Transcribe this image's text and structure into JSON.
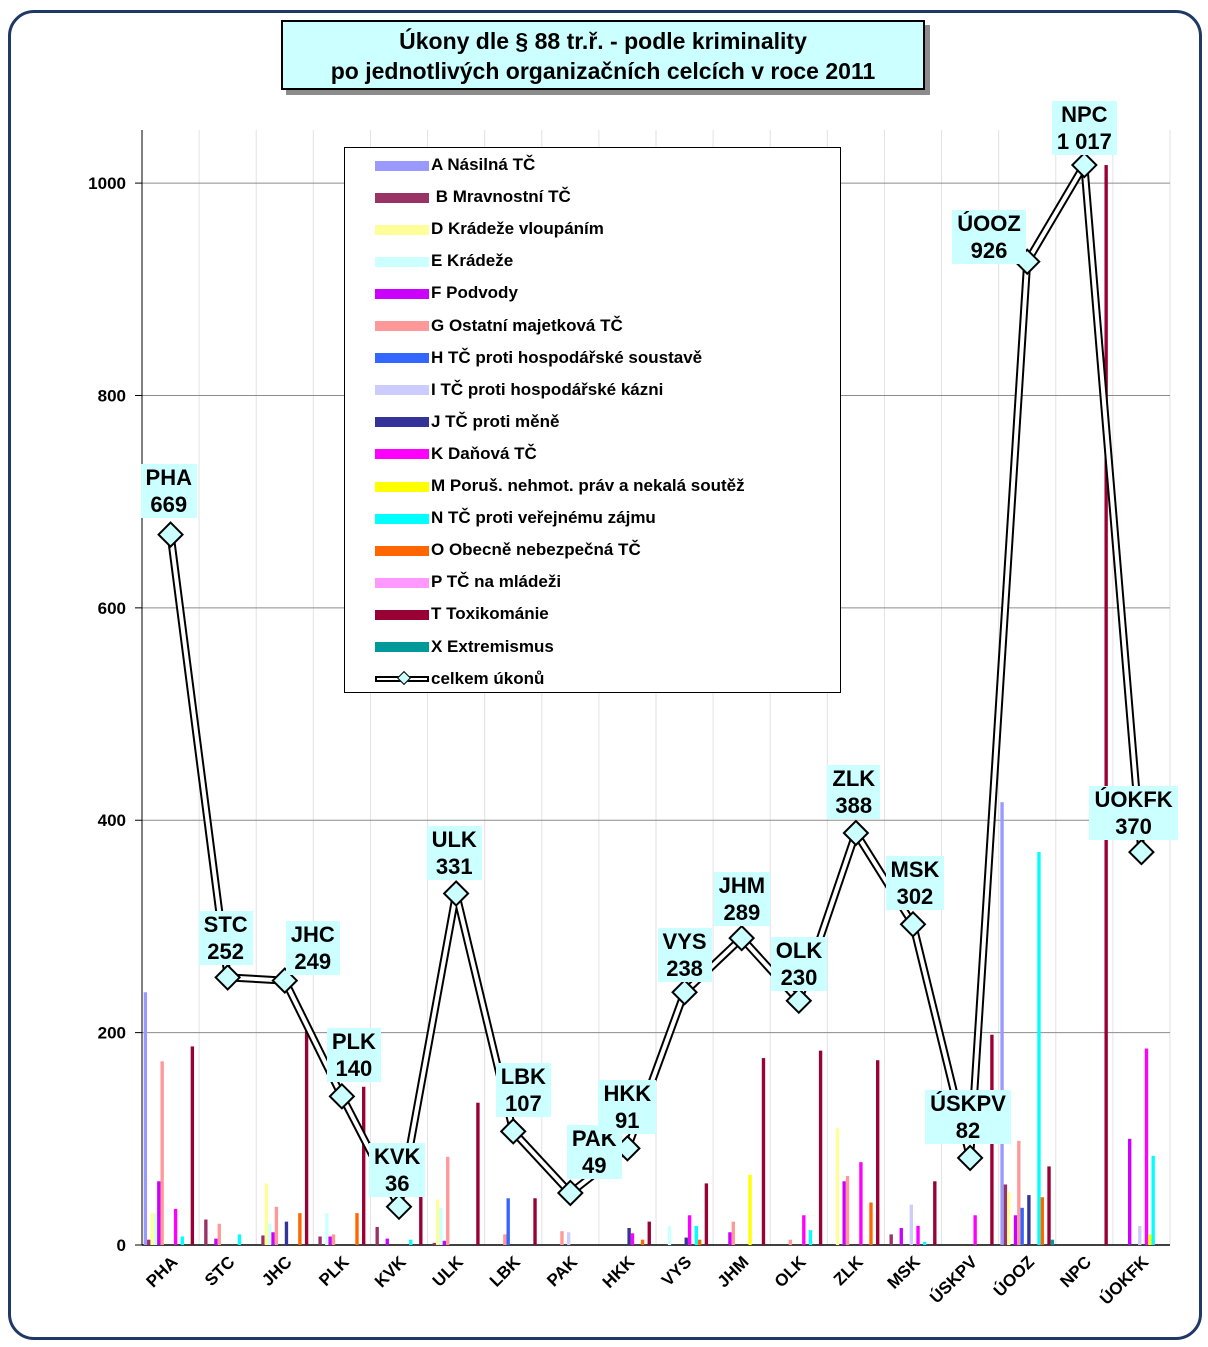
{
  "title": {
    "line1": "Úkony dle § 88 tr.ř. - podle kriminality",
    "line2": "po jednotlivých organizačních celcích v roce 2011"
  },
  "chart_data": {
    "type": "bar",
    "categories": [
      "PHA",
      "STC",
      "JHC",
      "PLK",
      "KVK",
      "ULK",
      "LBK",
      "PAK",
      "HKK",
      "VYS",
      "JHM",
      "OLK",
      "ZLK",
      "MSK",
      "ÚSKPV",
      "ÚOOZ",
      "NPC",
      "ÚOKFK"
    ],
    "ylim": [
      0,
      1050
    ],
    "yticks": [
      0,
      200,
      400,
      600,
      800,
      1000
    ],
    "grid": true,
    "legend_position": "top-center",
    "series": [
      {
        "name": "A Násilná TČ",
        "color": "#9999ff",
        "values": [
          238,
          0,
          0,
          0,
          0,
          0,
          0,
          0,
          0,
          0,
          0,
          0,
          0,
          0,
          0,
          417,
          0,
          0
        ]
      },
      {
        "name": " B Mravnostní TČ",
        "color": "#993366",
        "values": [
          5,
          24,
          9,
          8,
          17,
          2,
          0,
          0,
          0,
          0,
          0,
          0,
          0,
          10,
          0,
          57,
          0,
          0
        ]
      },
      {
        "name": "D Krádeže vloupáním",
        "color": "#ffff99",
        "values": [
          30,
          0,
          58,
          0,
          0,
          43,
          0,
          0,
          0,
          0,
          0,
          0,
          110,
          0,
          0,
          50,
          0,
          0
        ]
      },
      {
        "name": "E Krádeže",
        "color": "#ccffff",
        "values": [
          30,
          0,
          20,
          30,
          0,
          35,
          0,
          0,
          0,
          18,
          0,
          0,
          0,
          0,
          0,
          0,
          0,
          0
        ]
      },
      {
        "name": "F Podvody",
        "color": "#cc00ff",
        "values": [
          60,
          6,
          12,
          8,
          6,
          4,
          0,
          0,
          0,
          0,
          12,
          0,
          60,
          16,
          0,
          28,
          0,
          100
        ]
      },
      {
        "name": "G Ostatní majetková TČ",
        "color": "#ff9999",
        "values": [
          173,
          20,
          36,
          10,
          0,
          83,
          10,
          13,
          0,
          0,
          22,
          5,
          65,
          0,
          0,
          98,
          0,
          0
        ]
      },
      {
        "name": "H TČ proti hospodářské  soustavě",
        "color": "#3366ff",
        "values": [
          0,
          0,
          0,
          0,
          0,
          0,
          44,
          0,
          0,
          0,
          0,
          0,
          0,
          0,
          0,
          35,
          0,
          0
        ]
      },
      {
        "name": "I TČ proti hospodářské kázni",
        "color": "#ccccff",
        "values": [
          0,
          0,
          0,
          0,
          0,
          0,
          0,
          12,
          0,
          0,
          0,
          0,
          0,
          38,
          0,
          0,
          0,
          18
        ]
      },
      {
        "name": "J TČ proti měně",
        "color": "#333399",
        "values": [
          0,
          0,
          22,
          0,
          0,
          0,
          0,
          0,
          16,
          7,
          0,
          0,
          0,
          0,
          0,
          47,
          0,
          0
        ]
      },
      {
        "name": "K Daňová TČ",
        "color": "#ff00ff",
        "values": [
          34,
          0,
          0,
          0,
          0,
          0,
          0,
          0,
          11,
          28,
          0,
          28,
          78,
          18,
          28,
          0,
          0,
          185
        ]
      },
      {
        "name": "M Poruš. nehmot. práv a nekalá soutěž",
        "color": "#ffff00",
        "values": [
          0,
          0,
          0,
          0,
          0,
          0,
          0,
          0,
          0,
          0,
          66,
          0,
          0,
          0,
          0,
          0,
          0,
          10
        ]
      },
      {
        "name": "N TČ proti veřejnému zájmu",
        "color": "#00ffff",
        "values": [
          8,
          10,
          0,
          0,
          5,
          0,
          0,
          0,
          0,
          18,
          0,
          14,
          0,
          3,
          0,
          370,
          0,
          84
        ]
      },
      {
        "name": "O Obecně nebezpečná TČ",
        "color": "#ff6600",
        "values": [
          0,
          0,
          30,
          30,
          0,
          0,
          0,
          0,
          5,
          5,
          0,
          0,
          40,
          0,
          0,
          45,
          0,
          0
        ]
      },
      {
        "name": "P TČ na mládeži",
        "color": "#ff99ff",
        "values": [
          0,
          0,
          0,
          0,
          0,
          0,
          0,
          0,
          0,
          0,
          0,
          0,
          0,
          0,
          0,
          0,
          0,
          0
        ]
      },
      {
        "name": "T Toxikománie",
        "color": "#990033",
        "values": [
          187,
          0,
          204,
          149,
          81,
          134,
          44,
          0,
          22,
          58,
          176,
          183,
          174,
          60,
          198,
          74,
          1017,
          0
        ]
      },
      {
        "name": "X Extremismus",
        "color": "#009999",
        "values": [
          0,
          0,
          0,
          0,
          0,
          0,
          0,
          0,
          0,
          0,
          0,
          0,
          0,
          0,
          0,
          5,
          0,
          0
        ]
      }
    ],
    "line": {
      "name": "celkem úkonů",
      "values": [
        669,
        252,
        249,
        140,
        36,
        331,
        107,
        49,
        91,
        238,
        289,
        230,
        388,
        302,
        82,
        926,
        1017,
        370
      ],
      "value_labels": [
        "669",
        "252",
        "249",
        "140",
        "36",
        "331",
        "107",
        "49",
        "91",
        "238",
        "289",
        "230",
        "388",
        "302",
        "82",
        "926",
        "1 017",
        "370"
      ]
    }
  }
}
